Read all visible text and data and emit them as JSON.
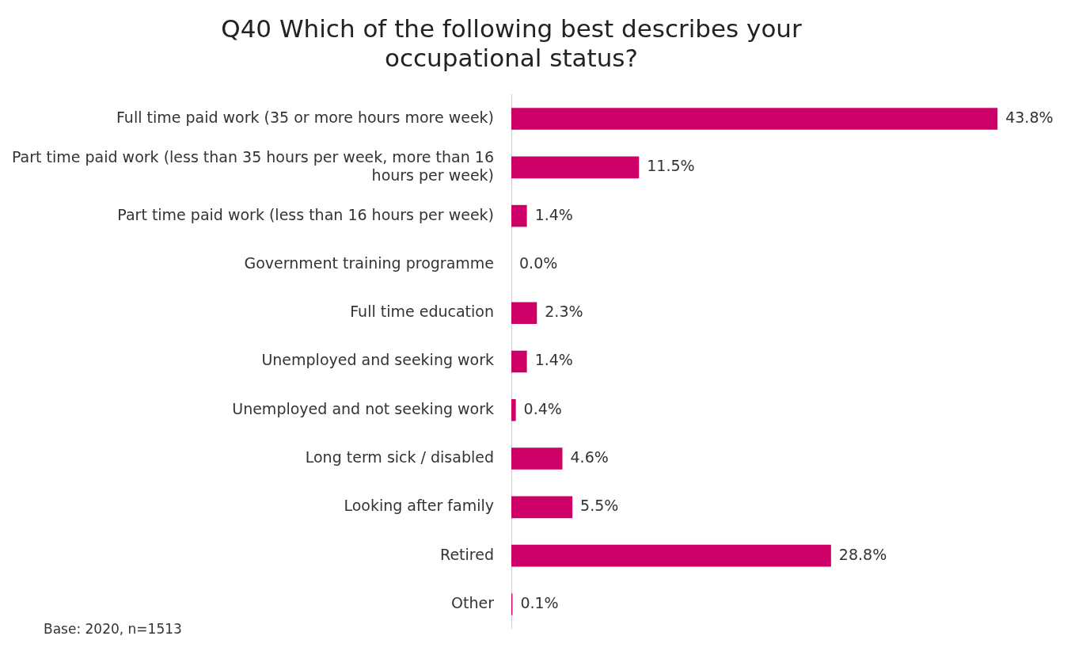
{
  "chart_data": {
    "type": "bar",
    "orientation": "horizontal",
    "title": "Q40 Which of the following best describes your occupational status?",
    "categories": [
      "Full time paid work (35 or more hours more week)",
      "Part time paid work (less than 35 hours per week, more than 16 hours per week)",
      "Part time paid work (less than 16 hours per week)",
      "Government training programme",
      "Full time education",
      "Unemployed and seeking work",
      "Unemployed and not seeking work",
      "Long term sick / disabled",
      "Looking after family",
      "Retired",
      "Other"
    ],
    "values": [
      43.8,
      11.5,
      1.4,
      0.0,
      2.3,
      1.4,
      0.4,
      4.6,
      5.5,
      28.8,
      0.1
    ],
    "value_labels": [
      "43.8%",
      "11.5%",
      "1.4%",
      "0.0%",
      "2.3%",
      "1.4%",
      "0.4%",
      "4.6%",
      "5.5%",
      "28.8%",
      "0.1%"
    ],
    "color": "#cc0066",
    "grid": false,
    "legend": false,
    "annotations": [
      "Base: 2020, n=1513"
    ]
  }
}
